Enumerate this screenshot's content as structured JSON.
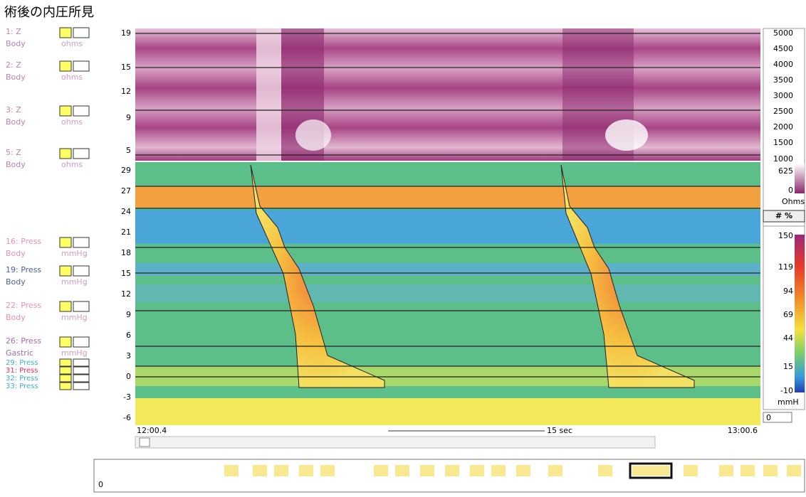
{
  "title": "術後の内圧所見",
  "channels": [
    {
      "name": "1: Z",
      "site": "Body",
      "unit": "ohms"
    },
    {
      "name": "2: Z",
      "site": "Body",
      "unit": "ohms"
    },
    {
      "name": "3: Z",
      "site": "Body",
      "unit": "ohms"
    },
    {
      "name": "5: Z",
      "site": "Body",
      "unit": "ohms"
    },
    {
      "name": "16: Press",
      "site": "Body",
      "unit": "mmHg"
    },
    {
      "name": "19: Press",
      "site": "Body",
      "unit": "mmHg"
    },
    {
      "name": "22: Press",
      "site": "Body",
      "unit": "mmHg"
    },
    {
      "name": "26: Press",
      "site": "Gastric",
      "unit": "mmHg"
    },
    {
      "name": "29: Press"
    },
    {
      "name": "31: Press"
    },
    {
      "name": "32: Press"
    },
    {
      "name": "33: Press"
    }
  ],
  "impedance_axis": {
    "ticks": [
      19,
      15,
      12,
      9,
      5
    ]
  },
  "pressure_axis": {
    "ticks": [
      29,
      27,
      24,
      21,
      18,
      15,
      12,
      9,
      6,
      3,
      0,
      -3,
      -6
    ]
  },
  "impedance_scale": {
    "ticks": [
      5000,
      4500,
      4000,
      3500,
      3000,
      2500,
      2000,
      1500,
      1000,
      625,
      0
    ],
    "unit": "Ohms"
  },
  "pressure_scale": {
    "ticks": [
      150,
      119,
      94,
      69,
      44,
      15,
      -10
    ],
    "unit": "mmH"
  },
  "toggle": "# %",
  "time_axis": {
    "start": "12:00.4",
    "span": "15 sec",
    "end": "13:00.6"
  },
  "scale_min_field": "0",
  "strip_field": "0"
}
